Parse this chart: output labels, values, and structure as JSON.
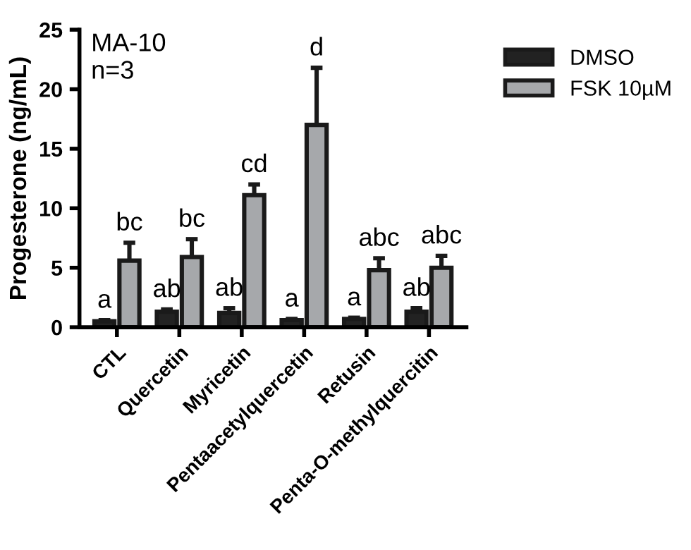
{
  "chart_data": {
    "type": "bar",
    "ylabel": "Progesterone (ng/mL)",
    "annotations": [
      "MA-10\nn=3"
    ],
    "categories": [
      "CTL",
      "Quercetin",
      "Myricetin",
      "Pentaacetylquercetin",
      "Retusin",
      "Penta-O-methylquercitin"
    ],
    "series": [
      {
        "name": "DMSO",
        "color": "#222222",
        "values": [
          0.5,
          1.3,
          1.2,
          0.6,
          0.7,
          1.3
        ],
        "errors": [
          0.1,
          0.2,
          0.4,
          0.1,
          0.1,
          0.3
        ],
        "value_labels": [
          "a",
          "ab",
          "ab",
          "a",
          "a",
          "ab"
        ]
      },
      {
        "name": "FSK 10µM",
        "color": "#a6a8ab",
        "values": [
          5.6,
          5.9,
          11.1,
          17.0,
          4.8,
          5.0
        ],
        "errors": [
          1.5,
          1.5,
          0.9,
          4.8,
          1.0,
          1.0
        ],
        "value_labels": [
          "bc",
          "bc",
          "cd",
          "d",
          "abc",
          "abc"
        ]
      }
    ],
    "ylim": [
      0,
      25
    ],
    "yticks": [
      0,
      5,
      10,
      15,
      20,
      25
    ],
    "grid": false,
    "legend": "top right"
  }
}
